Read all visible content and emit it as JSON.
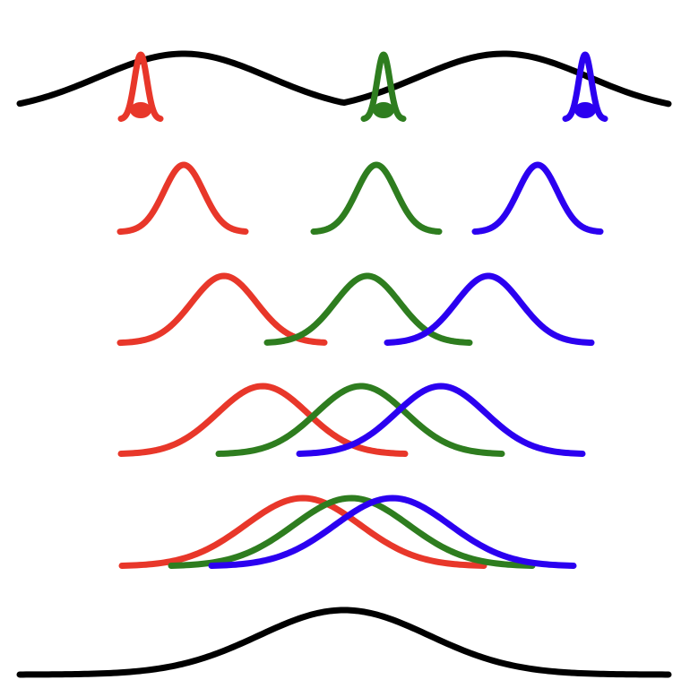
{
  "colors": {
    "red": "#e8372a",
    "green": "#2e7d1f",
    "blue": "#2b00f0",
    "black": "#000000"
  },
  "rows": [
    {
      "id": "row-1",
      "description_key": "narrow-peaks-on-wave"
    },
    {
      "id": "row-2",
      "description_key": "separated-peaks"
    },
    {
      "id": "row-3",
      "description_key": "slightly-overlapping-peaks"
    },
    {
      "id": "row-4",
      "description_key": "overlapping-peaks"
    },
    {
      "id": "row-5",
      "description_key": "merged-peaks"
    },
    {
      "id": "row-6",
      "description_key": "single-broad-peak"
    }
  ]
}
